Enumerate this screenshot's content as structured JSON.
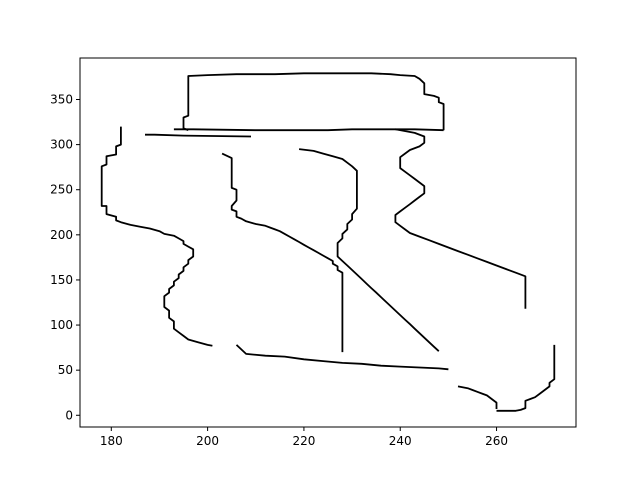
{
  "chart_data": {
    "type": "line",
    "title": "",
    "xlabel": "",
    "ylabel": "",
    "xlim": [
      173.5,
      276.5
    ],
    "ylim": [
      -13,
      396
    ],
    "x_ticks": [
      180,
      200,
      220,
      240,
      260
    ],
    "y_ticks": [
      0,
      50,
      100,
      150,
      200,
      250,
      300,
      350
    ],
    "grid": false,
    "legend": "none",
    "line_color": "#000000",
    "series": [
      {
        "x": [
          182,
          182,
          181,
          181,
          179,
          179,
          178,
          178,
          178,
          179,
          179,
          181,
          181,
          182,
          182,
          184,
          186,
          187,
          189,
          190,
          190,
          191,
          193,
          193,
          194,
          195,
          195,
          196,
          196,
          197,
          198,
          199,
          200,
          200,
          201
        ],
        "y": [
          320,
          300,
          298,
          289,
          287,
          278,
          276,
          268,
          260,
          251,
          242,
          232,
          224,
          220,
          216,
          212,
          210,
          205,
          202,
          200,
          198,
          195,
          193,
          190,
          187,
          182,
          180,
          178,
          174,
          170,
          164,
          160,
          157,
          152,
          150
        ]
      },
      {
        "x": [
          182,
          181,
          181,
          179,
          178,
          178,
          178,
          179,
          179,
          181,
          182,
          184,
          186,
          189,
          190,
          190,
          191,
          193,
          194,
          195,
          195,
          196,
          196,
          197,
          197,
          198,
          200,
          201
        ],
        "y": [
          320,
          300,
          298,
          289,
          278,
          268,
          260,
          251,
          232,
          220,
          216,
          212,
          210,
          202,
          200,
          198,
          195,
          193,
          190,
          187,
          182,
          178,
          170,
          162,
          158,
          152,
          130,
          115
        ]
      },
      {
        "x": [
          179,
          179,
          181,
          182,
          184,
          186,
          187,
          189,
          190,
          190,
          191,
          193,
          193,
          194,
          195,
          195,
          196,
          196,
          197,
          197,
          198,
          200,
          201
        ],
        "y": [
          232,
          220,
          216,
          212,
          210,
          205,
          202,
          200,
          198,
          195,
          193,
          190,
          187,
          182,
          180,
          178,
          174,
          170,
          164,
          152,
          150,
          140,
          115
        ]
      }
    ]
  },
  "paths": [
    {
      "x": [
        182,
        182,
        181,
        181,
        179,
        179,
        178,
        178,
        178,
        179,
        179,
        181,
        181,
        182,
        182,
        184,
        186,
        187,
        188,
        189,
        190,
        190,
        191,
        193,
        193,
        194,
        195,
        195,
        195,
        196,
        196,
        197,
        198,
        199,
        200,
        201,
        201,
        201
      ],
      "y": [
        322,
        300,
        298,
        289,
        287,
        278,
        276,
        268,
        260,
        251,
        242,
        232,
        224,
        220,
        216,
        212,
        210,
        208,
        205,
        202,
        200,
        198,
        195,
        193,
        190,
        187,
        180,
        178,
        174,
        170,
        164,
        160,
        155,
        150,
        148,
        140,
        124,
        115
      ]
    },
    {
      "x": [
        187,
        189,
        195,
        209
      ],
      "y": [
        311,
        311,
        310,
        309
      ]
    },
    {
      "x": [
        193,
        196,
        210,
        225,
        230,
        243,
        249
      ],
      "y": [
        317,
        317,
        316,
        316,
        317,
        317,
        316
      ]
    },
    {
      "x": [
        195,
        197,
        199,
        203,
        206,
        210,
        214,
        217,
        219,
        220,
        222,
        224,
        226,
        227,
        227,
        228,
        228,
        228,
        227,
        227,
        226,
        226,
        225,
        226,
        226
      ],
      "y": [
        376,
        377,
        378,
        378,
        378,
        379,
        379,
        380,
        380,
        380,
        381,
        381,
        381,
        380,
        380,
        379,
        378,
        377,
        376,
        375,
        372,
        370,
        368,
        364,
        360
      ]
    }
  ]
}
